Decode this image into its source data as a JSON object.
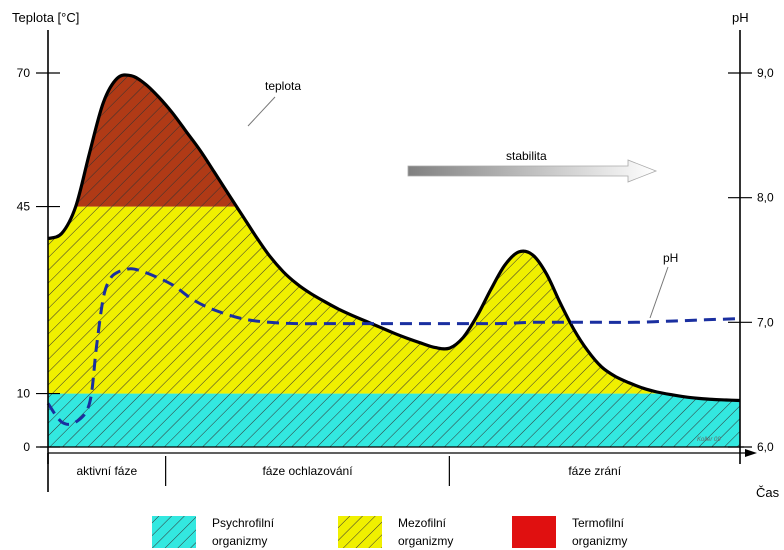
{
  "chart_data": {
    "type": "area",
    "title": "",
    "ylabel_left": "Teplota [°C]",
    "ylabel_right": "pH",
    "xlabel": "Čas",
    "yticks_left": [
      {
        "value": 0,
        "label": "0"
      },
      {
        "value": 10,
        "label": "10"
      },
      {
        "value": 45,
        "label": "45"
      },
      {
        "value": 70,
        "label": "70"
      }
    ],
    "yticks_right": [
      {
        "value": 6.0,
        "label": "6,0"
      },
      {
        "value": 7.0,
        "label": "7,0"
      },
      {
        "value": 8.0,
        "label": "8,0"
      },
      {
        "value": 9.0,
        "label": "9,0"
      }
    ],
    "ylim_left": [
      0,
      70
    ],
    "ylim_right": [
      6.0,
      9.0
    ],
    "xlim": [
      0,
      100
    ],
    "phases": [
      {
        "label": "aktivní fáze",
        "start": 0,
        "end": 17
      },
      {
        "label": "fáze ochlazování",
        "start": 17,
        "end": 58
      },
      {
        "label": "fáze zrání",
        "start": 58,
        "end": 100
      }
    ],
    "series": [
      {
        "name": "teplota",
        "axis": "left",
        "color": "#000000",
        "x": [
          0,
          2,
          4,
          6,
          8,
          10,
          12,
          14,
          16,
          18,
          20,
          22,
          24,
          26,
          28,
          30,
          32,
          34,
          36,
          38,
          40,
          42,
          44,
          46,
          48,
          50,
          52,
          54,
          56,
          58,
          60,
          62,
          64,
          66,
          68,
          70,
          72,
          74,
          76,
          78,
          80,
          82,
          84,
          86,
          88,
          90,
          92,
          94,
          96,
          98,
          100
        ],
        "values": [
          39,
          40,
          45,
          55,
          64.5,
          69,
          69.5,
          68,
          65.5,
          62.5,
          59,
          55.5,
          51.5,
          47.5,
          43.5,
          39.5,
          35.8,
          32.8,
          30.5,
          28.7,
          27.2,
          25.8,
          24.6,
          23.5,
          22.4,
          21.3,
          20.3,
          19.4,
          18.6,
          18.5,
          20.5,
          24.5,
          29.5,
          34,
          36.5,
          36,
          32.5,
          27,
          22,
          18,
          15,
          13.2,
          12,
          11,
          10.3,
          9.8,
          9.4,
          9.1,
          8.9,
          8.8,
          8.7
        ]
      },
      {
        "name": "pH",
        "axis": "right",
        "color": "#1a2fa0",
        "x": [
          0,
          2,
          4,
          6,
          7,
          8,
          9,
          10,
          11,
          12,
          13,
          15,
          18,
          21,
          24,
          28,
          32,
          36,
          40,
          45,
          50,
          55,
          60,
          65,
          70,
          75,
          80,
          85,
          90,
          95,
          100
        ],
        "values": [
          6.35,
          6.2,
          6.2,
          6.35,
          6.8,
          7.2,
          7.35,
          7.4,
          7.42,
          7.43,
          7.42,
          7.38,
          7.3,
          7.18,
          7.1,
          7.03,
          7.0,
          6.99,
          6.99,
          6.99,
          6.99,
          6.99,
          6.99,
          6.99,
          7.0,
          7.0,
          7.0,
          7.0,
          7.01,
          7.02,
          7.03
        ]
      }
    ],
    "temperature_zones": [
      {
        "name": "Psychrofilní organizmy",
        "min": 0,
        "max": 10,
        "color": "#33e8e0"
      },
      {
        "name": "Mezofilní organizmy",
        "min": 10,
        "max": 45,
        "color": "#f0f000"
      },
      {
        "name": "Termofilní organizmy",
        "min": 45,
        "max": 70,
        "color": "#b03a16"
      }
    ],
    "annotations": [
      {
        "text": "teplota"
      },
      {
        "text": "stabilita"
      },
      {
        "text": "pH"
      },
      {
        "text": "Koller 09"
      }
    ],
    "legend": {
      "placement": "bottom",
      "entries": [
        {
          "line1": "Psychrofilní",
          "line2": "organizmy",
          "color": "#33e8e0",
          "hatched": true
        },
        {
          "line1": "Mezofilní",
          "line2": "organizmy",
          "color": "#f0f000",
          "hatched": true
        },
        {
          "line1": "Termofilní",
          "line2": "organizmy",
          "color": "#e01010",
          "hatched": false
        }
      ]
    },
    "grid": false
  }
}
